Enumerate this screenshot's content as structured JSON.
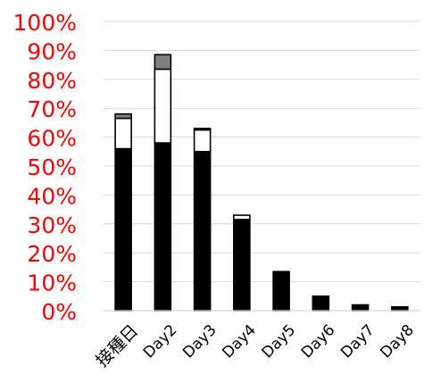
{
  "chart_data": {
    "type": "bar",
    "stacked": true,
    "categories": [
      "接種日",
      "Day2",
      "Day3",
      "Day4",
      "Day5",
      "Day6",
      "Day7",
      "Day8"
    ],
    "series": [
      {
        "values": [
          56,
          58,
          55,
          31.5,
          13.5,
          5,
          2,
          1.3
        ],
        "color": "#000000"
      },
      {
        "values": [
          10.5,
          25.5,
          7.5,
          1.5,
          0,
          0,
          0,
          0
        ],
        "color": "#ffffff"
      },
      {
        "values": [
          1.5,
          5,
          0.5,
          0,
          0,
          0,
          0,
          0
        ],
        "color": "#808080"
      }
    ],
    "ylim": [
      0,
      100
    ],
    "yticks": [
      "0%",
      "10%",
      "20%",
      "30%",
      "40%",
      "50%",
      "60%",
      "70%",
      "80%",
      "90%",
      "100%"
    ],
    "ytick_values": [
      0,
      10,
      20,
      30,
      40,
      50,
      60,
      70,
      80,
      90,
      100
    ],
    "ytick_color": "#ff0000",
    "xtick_color": "#000000",
    "grid": true,
    "gridline_color": "#d9d9d9",
    "bar_outline_color": "#000000",
    "legend": "none"
  }
}
